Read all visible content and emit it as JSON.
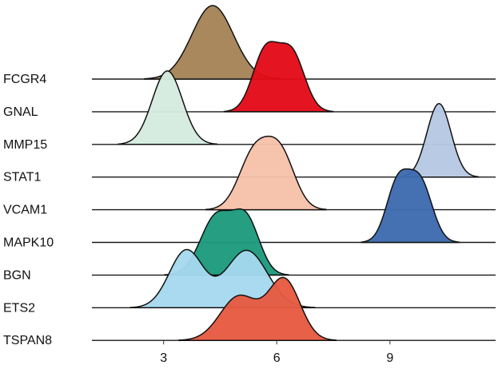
{
  "chart_data": {
    "type": "ridgeline",
    "title": "",
    "xlabel": "",
    "ylabel": "",
    "xlim": [
      1.1,
      11.8
    ],
    "xticks": [
      3,
      6,
      9
    ],
    "grid": false,
    "legend": "none",
    "rows": [
      {
        "label": "FCGR4",
        "color": "#a58356",
        "components": [
          {
            "mu": 4.3,
            "sigma": 0.55,
            "w": 1.0
          }
        ]
      },
      {
        "label": "GNAL",
        "color": "#e30b18",
        "components": [
          {
            "mu": 5.7,
            "sigma": 0.34,
            "w": 0.82
          },
          {
            "mu": 6.4,
            "sigma": 0.34,
            "w": 0.78
          }
        ]
      },
      {
        "label": "MMP15",
        "color": "#d4ebe0",
        "components": [
          {
            "mu": 3.1,
            "sigma": 0.4,
            "w": 1.0
          }
        ]
      },
      {
        "label": "STAT1",
        "color": "#b6c8e3",
        "components": [
          {
            "mu": 10.3,
            "sigma": 0.32,
            "w": 1.0
          }
        ]
      },
      {
        "label": "VCAM1",
        "color": "#f6c1aa",
        "components": [
          {
            "mu": 5.4,
            "sigma": 0.4,
            "w": 0.78
          },
          {
            "mu": 6.1,
            "sigma": 0.38,
            "w": 0.76
          }
        ]
      },
      {
        "label": "MAPK10",
        "color": "#3d6aaf",
        "components": [
          {
            "mu": 9.2,
            "sigma": 0.3,
            "w": 0.82
          },
          {
            "mu": 9.8,
            "sigma": 0.32,
            "w": 0.85
          }
        ]
      },
      {
        "label": "BGN",
        "color": "#1c9a7c",
        "components": [
          {
            "mu": 4.4,
            "sigma": 0.42,
            "w": 0.8
          },
          {
            "mu": 5.2,
            "sigma": 0.35,
            "w": 0.72
          }
        ]
      },
      {
        "label": "ETS2",
        "color": "#a5d8ee",
        "components": [
          {
            "mu": 3.6,
            "sigma": 0.45,
            "w": 0.78
          },
          {
            "mu": 5.2,
            "sigma": 0.55,
            "w": 0.78
          }
        ]
      },
      {
        "label": "TSPAN8",
        "color": "#e65a40",
        "components": [
          {
            "mu": 5.0,
            "sigma": 0.5,
            "w": 0.6
          },
          {
            "mu": 6.2,
            "sigma": 0.42,
            "w": 0.82
          }
        ]
      }
    ]
  }
}
